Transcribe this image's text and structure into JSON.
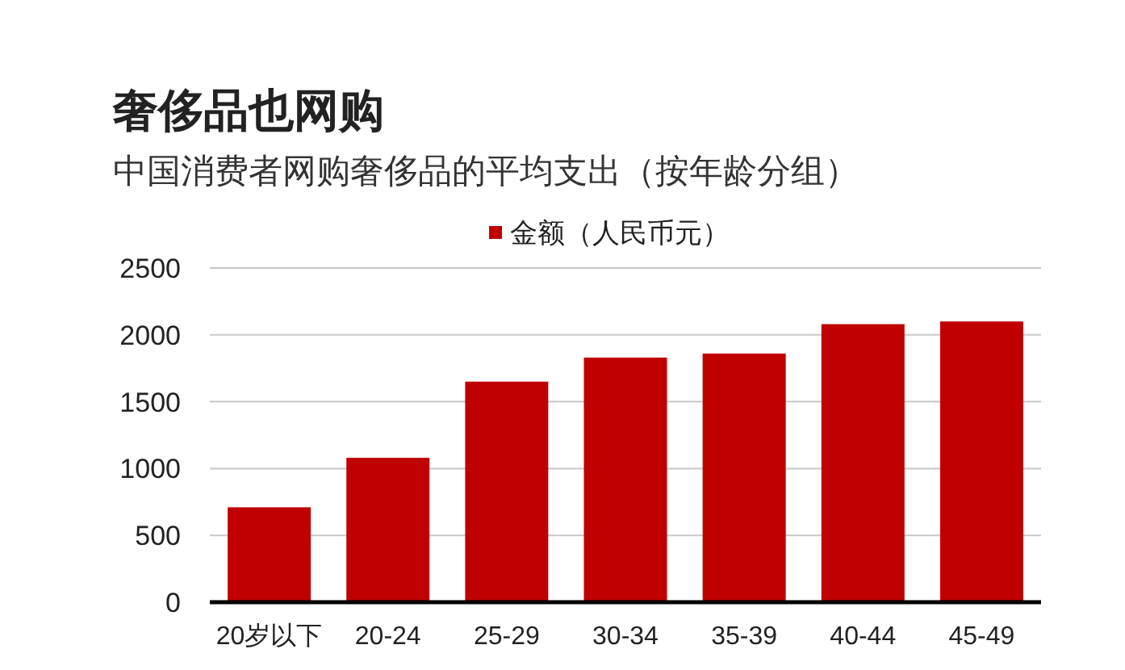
{
  "chart_data": {
    "type": "bar",
    "title": "奢侈品也网购",
    "subtitle": "中国消费者网购奢侈品的平均支出（按年龄分组）",
    "categories": [
      "20岁以下",
      "20-24",
      "25-29",
      "30-34",
      "35-39",
      "40-44",
      "45-49"
    ],
    "series": [
      {
        "name": "金额（人民币元）",
        "color": "#c00000",
        "values": [
          710,
          1080,
          1650,
          1830,
          1860,
          2080,
          2100
        ]
      }
    ],
    "ylim": [
      0,
      2500
    ],
    "yticks": [
      0,
      500,
      1000,
      1500,
      2000,
      2500
    ],
    "grid": "y",
    "legend": "top"
  }
}
